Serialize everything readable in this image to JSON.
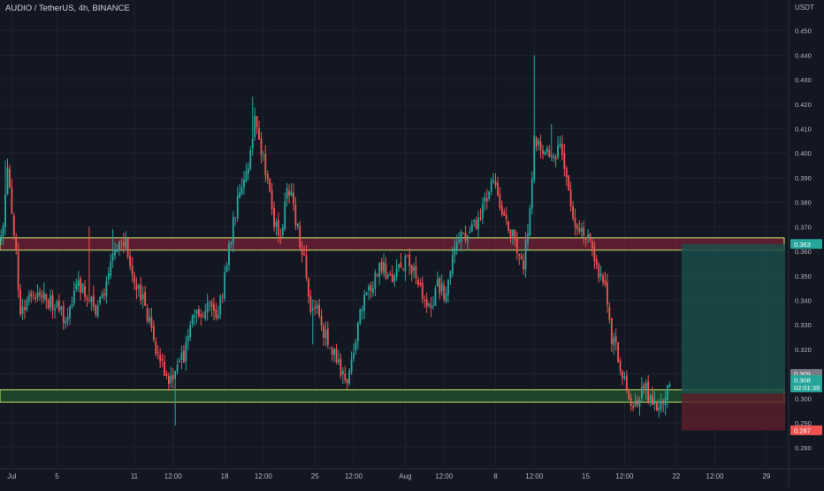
{
  "header": {
    "symbol_title": "AUDIO / TetherUS, 4h, BINANCE",
    "currency": "USDT"
  },
  "colors": {
    "background": "#131722",
    "grid": "#1f2330",
    "up": "#26a69a",
    "down": "#ef5350",
    "axis_text": "#b2b5be",
    "resistance_fill": "#6b1e33",
    "support_fill": "#1f4d2c",
    "zone_border": "#c8e66a",
    "target_fill": "#1a4d4a",
    "stop_fill": "#5a1f2a"
  },
  "chart_data": {
    "type": "candlestick",
    "symbol": "AUDIO / TetherUS",
    "timeframe": "4h",
    "exchange": "BINANCE",
    "ylim": [
      0.272,
      0.456
    ],
    "y_ticks": [
      0.28,
      0.29,
      0.3,
      0.31,
      0.32,
      0.33,
      0.34,
      0.35,
      0.36,
      0.37,
      0.38,
      0.39,
      0.4,
      0.41,
      0.42,
      0.43,
      0.44,
      0.45
    ],
    "x_ticks": [
      {
        "label": "Jul",
        "i": 5
      },
      {
        "label": "5",
        "i": 26
      },
      {
        "label": "11",
        "i": 62
      },
      {
        "label": "12:00",
        "i": 80
      },
      {
        "label": "18",
        "i": 104
      },
      {
        "label": "12:00",
        "i": 122
      },
      {
        "label": "25",
        "i": 146
      },
      {
        "label": "12:00",
        "i": 164
      },
      {
        "label": "Aug",
        "i": 188
      },
      {
        "label": "12:00",
        "i": 206
      },
      {
        "label": "8",
        "i": 230
      },
      {
        "label": "12:00",
        "i": 248
      },
      {
        "label": "15",
        "i": 272
      },
      {
        "label": "12:00",
        "i": 290
      },
      {
        "label": "22",
        "i": 314
      },
      {
        "label": "12:00",
        "i": 332
      },
      {
        "label": "29",
        "i": 356
      }
    ],
    "x_total_bars": 366,
    "close_path": [
      [
        0,
        0.365
      ],
      [
        3,
        0.392
      ],
      [
        6,
        0.37
      ],
      [
        9,
        0.335
      ],
      [
        12,
        0.34
      ],
      [
        18,
        0.341
      ],
      [
        24,
        0.339
      ],
      [
        30,
        0.333
      ],
      [
        36,
        0.348
      ],
      [
        40,
        0.341
      ],
      [
        44,
        0.336
      ],
      [
        47,
        0.342
      ],
      [
        51,
        0.356
      ],
      [
        55,
        0.362
      ],
      [
        58,
        0.364
      ],
      [
        61,
        0.35
      ],
      [
        66,
        0.339
      ],
      [
        70,
        0.328
      ],
      [
        73,
        0.318
      ],
      [
        77,
        0.306
      ],
      [
        81,
        0.311
      ],
      [
        85,
        0.318
      ],
      [
        89,
        0.331
      ],
      [
        93,
        0.335
      ],
      [
        96,
        0.34
      ],
      [
        100,
        0.33
      ],
      [
        104,
        0.348
      ],
      [
        107,
        0.366
      ],
      [
        110,
        0.382
      ],
      [
        113,
        0.391
      ],
      [
        116,
        0.399
      ],
      [
        118,
        0.413
      ],
      [
        121,
        0.402
      ],
      [
        124,
        0.39
      ],
      [
        127,
        0.372
      ],
      [
        130,
        0.363
      ],
      [
        133,
        0.388
      ],
      [
        135,
        0.381
      ],
      [
        138,
        0.368
      ],
      [
        141,
        0.358
      ],
      [
        144,
        0.335
      ],
      [
        147,
        0.336
      ],
      [
        150,
        0.328
      ],
      [
        153,
        0.322
      ],
      [
        156,
        0.315
      ],
      [
        159,
        0.308
      ],
      [
        162,
        0.31
      ],
      [
        165,
        0.323
      ],
      [
        168,
        0.339
      ],
      [
        172,
        0.345
      ],
      [
        176,
        0.356
      ],
      [
        180,
        0.35
      ],
      [
        185,
        0.352
      ],
      [
        189,
        0.357
      ],
      [
        192,
        0.352
      ],
      [
        196,
        0.344
      ],
      [
        200,
        0.338
      ],
      [
        203,
        0.347
      ],
      [
        206,
        0.342
      ],
      [
        210,
        0.356
      ],
      [
        214,
        0.365
      ],
      [
        218,
        0.366
      ],
      [
        221,
        0.372
      ],
      [
        225,
        0.38
      ],
      [
        228,
        0.388
      ],
      [
        231,
        0.383
      ],
      [
        234,
        0.375
      ],
      [
        237,
        0.368
      ],
      [
        240,
        0.362
      ],
      [
        243,
        0.356
      ],
      [
        246,
        0.375
      ],
      [
        248,
        0.408
      ],
      [
        252,
        0.4
      ],
      [
        256,
        0.398
      ],
      [
        260,
        0.403
      ],
      [
        263,
        0.39
      ],
      [
        266,
        0.375
      ],
      [
        269,
        0.37
      ],
      [
        272,
        0.366
      ],
      [
        275,
        0.363
      ],
      [
        278,
        0.35
      ],
      [
        281,
        0.345
      ],
      [
        284,
        0.325
      ],
      [
        287,
        0.318
      ],
      [
        290,
        0.308
      ],
      [
        293,
        0.3
      ],
      [
        296,
        0.297
      ],
      [
        299,
        0.304
      ],
      [
        302,
        0.301
      ],
      [
        305,
        0.297
      ],
      [
        308,
        0.3
      ],
      [
        311,
        0.303
      ]
    ],
    "levels": {
      "resistance_zone": [
        0.3605,
        0.3655
      ],
      "support_zone": [
        0.2985,
        0.3035
      ],
      "position_entry": 0.302,
      "position_target": 0.363,
      "position_stop": 0.287,
      "position_start_index": 317
    },
    "price_labels": [
      {
        "text": "0.363",
        "value": 0.363,
        "color": "#26a69a"
      },
      {
        "text": "0.309",
        "value": 0.31,
        "color": "#787b86"
      },
      {
        "text": "0.308",
        "value": 0.3075,
        "color": "#26a69a"
      },
      {
        "text": "02:01:39",
        "value": 0.3045,
        "color": "#26a69a"
      },
      {
        "text": "0.287",
        "value": 0.287,
        "color": "#ef5350"
      }
    ]
  }
}
